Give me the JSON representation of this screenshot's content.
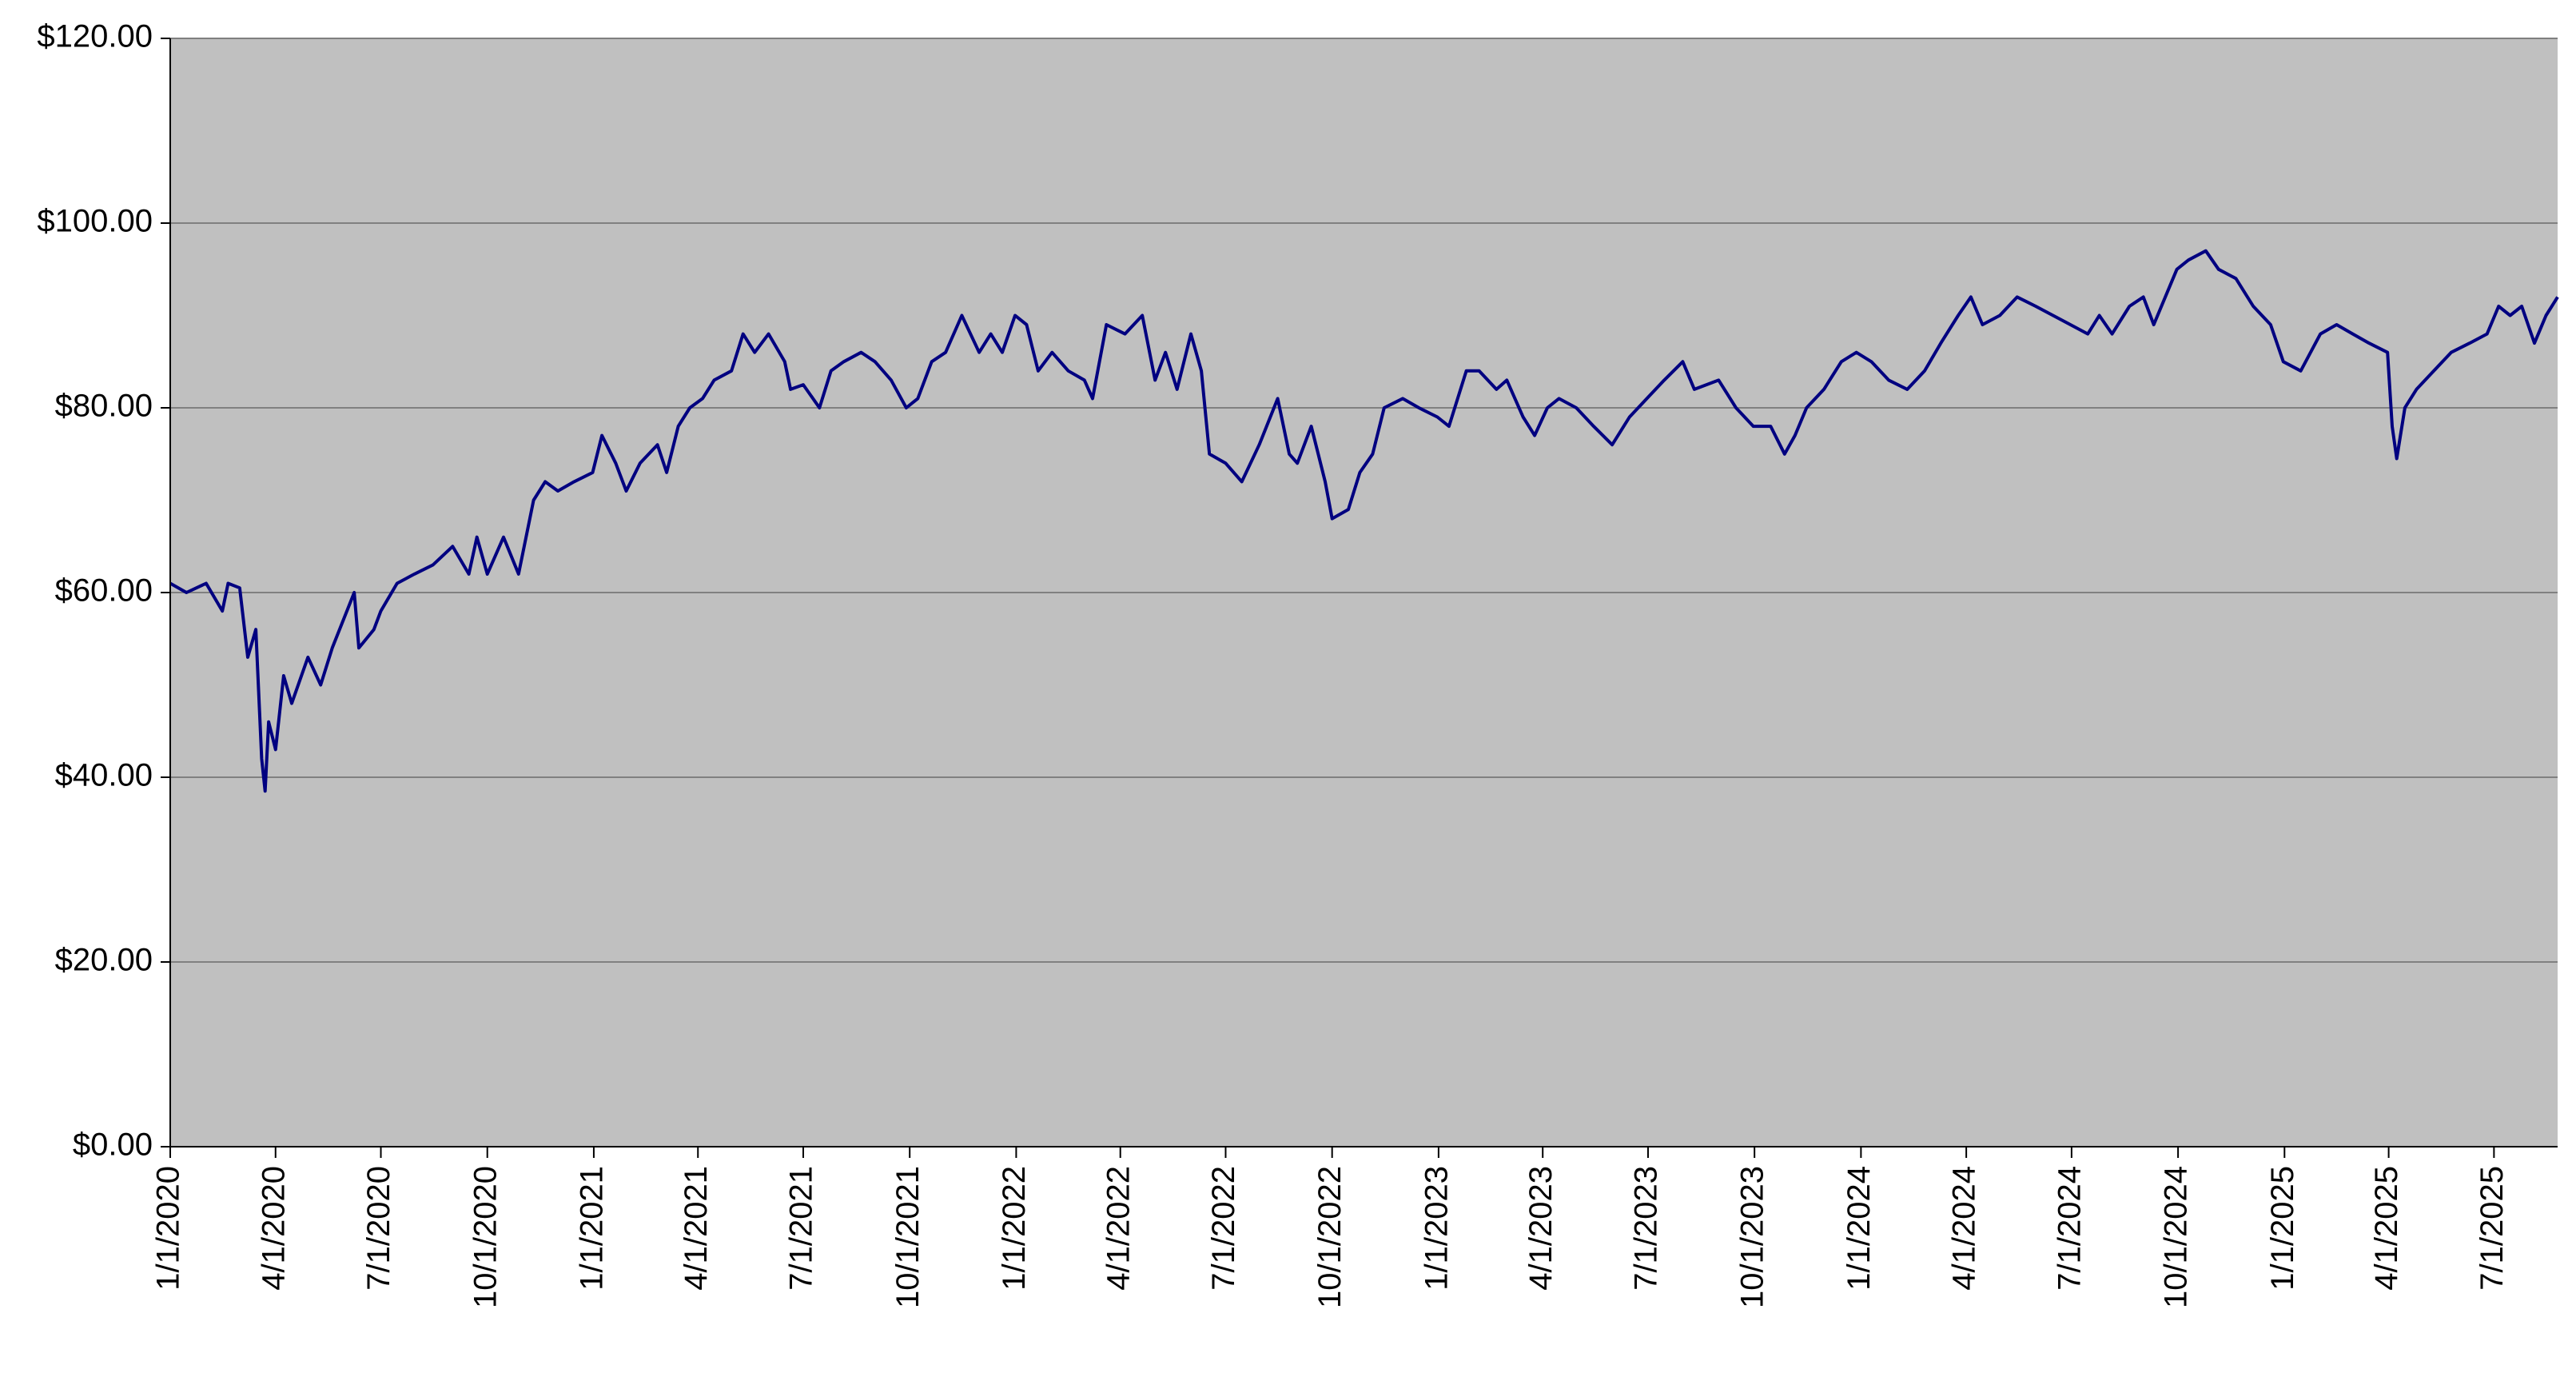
{
  "chart_data": {
    "type": "line",
    "color": "#000080",
    "background": "#c0c0c0",
    "grid": true,
    "x": [
      "2020-01-01",
      "2020-01-15",
      "2020-02-01",
      "2020-02-15",
      "2020-02-20",
      "2020-03-01",
      "2020-03-08",
      "2020-03-15",
      "2020-03-20",
      "2020-03-23",
      "2020-03-26",
      "2020-04-01",
      "2020-04-08",
      "2020-04-15",
      "2020-04-29",
      "2020-05-10",
      "2020-05-20",
      "2020-06-08",
      "2020-06-12",
      "2020-06-25",
      "2020-07-01",
      "2020-07-15",
      "2020-07-30",
      "2020-08-15",
      "2020-09-01",
      "2020-09-15",
      "2020-09-22",
      "2020-10-01",
      "2020-10-15",
      "2020-10-28",
      "2020-11-10",
      "2020-11-20",
      "2020-12-01",
      "2020-12-15",
      "2020-12-31",
      "2021-01-08",
      "2021-01-20",
      "2021-01-29",
      "2021-02-10",
      "2021-02-25",
      "2021-03-05",
      "2021-03-15",
      "2021-03-25",
      "2021-04-05",
      "2021-04-15",
      "2021-04-30",
      "2021-05-10",
      "2021-05-20",
      "2021-06-01",
      "2021-06-15",
      "2021-06-20",
      "2021-07-01",
      "2021-07-15",
      "2021-07-25",
      "2021-08-05",
      "2021-08-20",
      "2021-09-01",
      "2021-09-15",
      "2021-09-28",
      "2021-10-08",
      "2021-10-20",
      "2021-11-01",
      "2021-11-15",
      "2021-11-30",
      "2021-12-10",
      "2021-12-20",
      "2021-12-31",
      "2022-01-10",
      "2022-01-20",
      "2022-02-01",
      "2022-02-15",
      "2022-03-01",
      "2022-03-08",
      "2022-03-20",
      "2022-04-05",
      "2022-04-20",
      "2022-05-01",
      "2022-05-10",
      "2022-05-20",
      "2022-06-01",
      "2022-06-10",
      "2022-06-17",
      "2022-07-01",
      "2022-07-15",
      "2022-07-30",
      "2022-08-15",
      "2022-08-25",
      "2022-09-01",
      "2022-09-13",
      "2022-09-25",
      "2022-10-01",
      "2022-10-15",
      "2022-10-25",
      "2022-11-05",
      "2022-11-15",
      "2022-12-01",
      "2022-12-15",
      "2022-12-31",
      "2023-01-10",
      "2023-01-25",
      "2023-02-05",
      "2023-02-20",
      "2023-03-01",
      "2023-03-15",
      "2023-03-25",
      "2023-04-05",
      "2023-04-15",
      "2023-04-30",
      "2023-05-15",
      "2023-05-31",
      "2023-06-15",
      "2023-06-30",
      "2023-07-15",
      "2023-07-31",
      "2023-08-10",
      "2023-08-31",
      "2023-09-15",
      "2023-09-30",
      "2023-10-15",
      "2023-10-27",
      "2023-11-05",
      "2023-11-15",
      "2023-11-30",
      "2023-12-15",
      "2023-12-28",
      "2024-01-10",
      "2024-01-25",
      "2024-02-10",
      "2024-02-25",
      "2024-03-10",
      "2024-03-25",
      "2024-04-05",
      "2024-04-15",
      "2024-04-30",
      "2024-05-15",
      "2024-05-31",
      "2024-06-15",
      "2024-06-30",
      "2024-07-15",
      "2024-07-25",
      "2024-08-05",
      "2024-08-20",
      "2024-09-01",
      "2024-09-10",
      "2024-09-30",
      "2024-10-10",
      "2024-10-25",
      "2024-11-05",
      "2024-11-20",
      "2024-12-05",
      "2024-12-20",
      "2024-12-31",
      "2025-01-15",
      "2025-02-01",
      "2025-02-15",
      "2025-03-01",
      "2025-03-15",
      "2025-03-31",
      "2025-04-04",
      "2025-04-08",
      "2025-04-15",
      "2025-04-25",
      "2025-05-10",
      "2025-05-25",
      "2025-06-10",
      "2025-06-25",
      "2025-07-05",
      "2025-07-15",
      "2025-07-25",
      "2025-08-05",
      "2025-08-15",
      "2025-08-25"
    ],
    "values": [
      61,
      60,
      61,
      58,
      61,
      60.5,
      53,
      56,
      42,
      38.5,
      46,
      43,
      51,
      48,
      53,
      50,
      54,
      60,
      54,
      56,
      58,
      61,
      62,
      63,
      65,
      62,
      66,
      62,
      66,
      62,
      70,
      72,
      71,
      72,
      73,
      77,
      74,
      71,
      74,
      76,
      73,
      78,
      80,
      81,
      83,
      84,
      88,
      86,
      88,
      85,
      82,
      82.5,
      80,
      84,
      85,
      86,
      85,
      83,
      80,
      81,
      85,
      86,
      90,
      86,
      88,
      86,
      90,
      89,
      84,
      86,
      84,
      83,
      81,
      89,
      88,
      90,
      83,
      86,
      82,
      88,
      84,
      75,
      74,
      72,
      76,
      81,
      75,
      74,
      78,
      72,
      68,
      69,
      73,
      75,
      80,
      81,
      80,
      79,
      78,
      84,
      84,
      82,
      83,
      79,
      77,
      80,
      81,
      80,
      78,
      76,
      79,
      81,
      83,
      85,
      82,
      83,
      80,
      78,
      78,
      75,
      77,
      80,
      82,
      85,
      86,
      85,
      83,
      82,
      84,
      87,
      90,
      92,
      89,
      90,
      92,
      91,
      90,
      89,
      88,
      90,
      88,
      91,
      92,
      89,
      95,
      96,
      97,
      95,
      94,
      91,
      89,
      85,
      84,
      88,
      89,
      88,
      87,
      86,
      78,
      74.5,
      80,
      82,
      84,
      86,
      87,
      88,
      91,
      90,
      91,
      87,
      90,
      92
    ],
    "xlim": [
      "2020-01-01",
      "2025-08-25"
    ],
    "xticks": [
      {
        "value": "2020-01-01",
        "label": "1/1/2020"
      },
      {
        "value": "2020-04-01",
        "label": "4/1/2020"
      },
      {
        "value": "2020-07-01",
        "label": "7/1/2020"
      },
      {
        "value": "2020-10-01",
        "label": "10/1/2020"
      },
      {
        "value": "2021-01-01",
        "label": "1/1/2021"
      },
      {
        "value": "2021-04-01",
        "label": "4/1/2021"
      },
      {
        "value": "2021-07-01",
        "label": "7/1/2021"
      },
      {
        "value": "2021-10-01",
        "label": "10/1/2021"
      },
      {
        "value": "2022-01-01",
        "label": "1/1/2022"
      },
      {
        "value": "2022-04-01",
        "label": "4/1/2022"
      },
      {
        "value": "2022-07-01",
        "label": "7/1/2022"
      },
      {
        "value": "2022-10-01",
        "label": "10/1/2022"
      },
      {
        "value": "2023-01-01",
        "label": "1/1/2023"
      },
      {
        "value": "2023-04-01",
        "label": "4/1/2023"
      },
      {
        "value": "2023-07-01",
        "label": "7/1/2023"
      },
      {
        "value": "2023-10-01",
        "label": "10/1/2023"
      },
      {
        "value": "2024-01-01",
        "label": "1/1/2024"
      },
      {
        "value": "2024-04-01",
        "label": "4/1/2024"
      },
      {
        "value": "2024-07-01",
        "label": "7/1/2024"
      },
      {
        "value": "2024-10-01",
        "label": "10/1/2024"
      },
      {
        "value": "2025-01-01",
        "label": "1/1/2025"
      },
      {
        "value": "2025-04-01",
        "label": "4/1/2025"
      },
      {
        "value": "2025-07-01",
        "label": "7/1/2025"
      }
    ],
    "ylim": [
      0,
      120
    ],
    "yticks": [
      {
        "value": 0,
        "label": "$0.00"
      },
      {
        "value": 20,
        "label": "$20.00"
      },
      {
        "value": 40,
        "label": "$40.00"
      },
      {
        "value": 60,
        "label": "$60.00"
      },
      {
        "value": 80,
        "label": "$80.00"
      },
      {
        "value": 100,
        "label": "$100.00"
      },
      {
        "value": 120,
        "label": "$120.00"
      }
    ]
  }
}
